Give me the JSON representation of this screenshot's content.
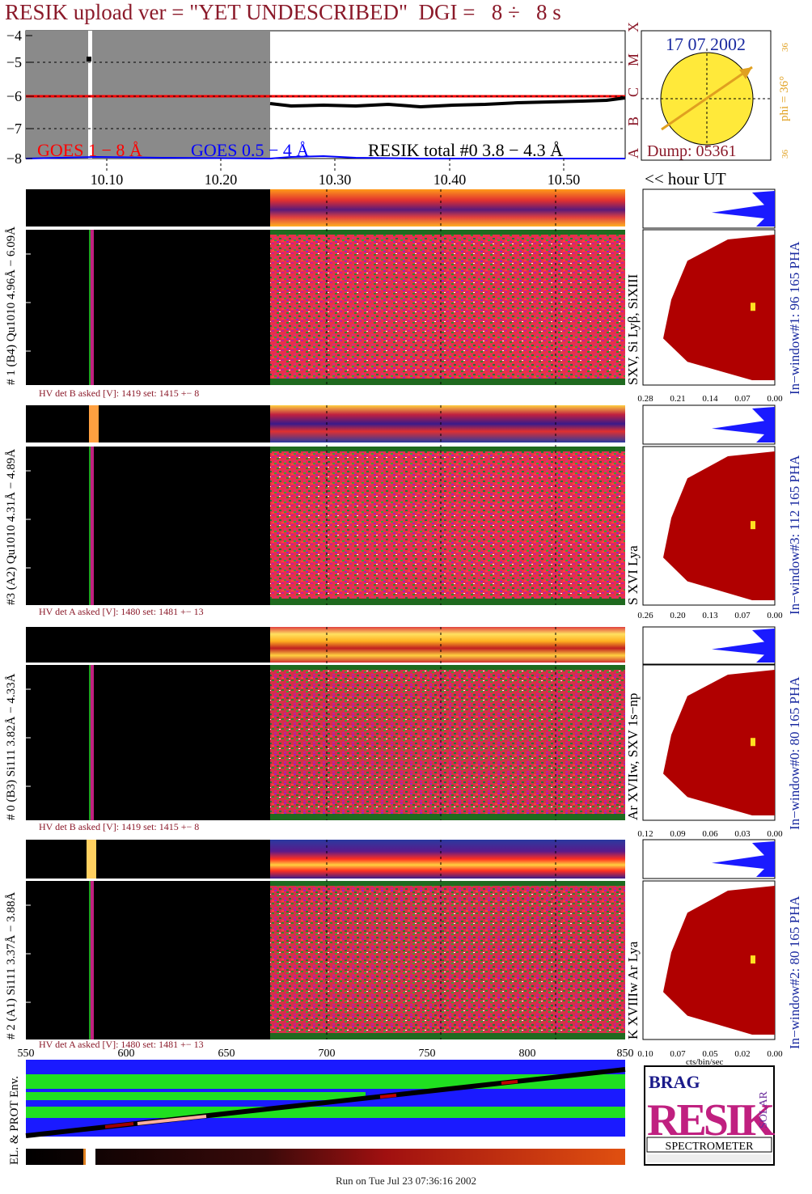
{
  "title": "RESIK upload ver = \"YET UNDESCRIBED\"  DGI =   8 ÷   8 s",
  "footer": "Run on Tue Jul 23 07:36:16 2002",
  "top_panel": {
    "y_ticks": [
      "−4",
      "−5",
      "−6",
      "−7",
      "−8"
    ],
    "class_labels": [
      "X",
      "M",
      "C",
      "B",
      "A"
    ],
    "x_ticks": [
      "10.10",
      "10.20",
      "10.30",
      "10.40",
      "10.50"
    ],
    "legend_goes_long": "GOES 1 − 8 Å",
    "legend_goes_short": "GOES 0.5 − 4 Å",
    "legend_resik": "RESIK total #0  3.8 − 4.3 Å",
    "colors": {
      "goes_long": "#ff0000",
      "goes_short": "#0000ff",
      "resik": "#000000",
      "eclipse": "#8a8a8a"
    }
  },
  "sun_panel": {
    "date": "17 07 2002",
    "dump": "Dump: 05361",
    "phi_label": "phi = 36°",
    "side_top": "36",
    "side_bottom": "36",
    "hour_label": "<< hour UT"
  },
  "channels": [
    {
      "label": "# 1 (B4) Qu1010 4.96Å − 6.09Å",
      "lines": "SXV, Si Lyβ, SiXIII",
      "window": "In−window#1:   96 165  PHA",
      "hv": "HV det B asked [V]:  1419 set:  1415  +−   8",
      "pha_ticks": [
        "0.28",
        "0.21",
        "0.14",
        "0.07",
        "0.00"
      ]
    },
    {
      "label": "#3 (A2) Qu1010  4.31Å − 4.89Å",
      "lines": "S XVI Lya",
      "window": "In−window#3:  112 165  PHA",
      "hv": "HV det A asked [V]:  1480 set:  1481  +−   13",
      "pha_ticks": [
        "0.26",
        "0.20",
        "0.13",
        "0.07",
        "0.00"
      ]
    },
    {
      "label": "# 0 (B3) Si111  3.82Å − 4.33Å",
      "lines": "Ar XVIIw, SXV 1s−np",
      "window": "In−window#0:   80 165  PHA",
      "hv": "HV det B asked [V]:  1419 set:  1415  +−   8",
      "pha_ticks": [
        "0.12",
        "0.09",
        "0.06",
        "0.03",
        "0.00"
      ]
    },
    {
      "label": "# 2 (A1) Si111  3.37Å − 3.88Å",
      "lines": "K XVIIIw  Ar Lya",
      "window": "In−window#2:   80 165  PHA",
      "hv": "HV det A asked [V]:  1480 set:  1481  +−   13",
      "pha_ticks": [
        "0.10",
        "0.07",
        "0.05",
        "0.02",
        "0.00"
      ]
    }
  ],
  "bottom": {
    "x_ticks": [
      "550",
      "600",
      "650",
      "700",
      "750",
      "800",
      "850"
    ],
    "cts_label": "cts/bin/sec",
    "env_label": "EL. & PROT Env."
  },
  "logo": {
    "letters": "RESIK",
    "small_left": "BRAG",
    "small_right": "SOLAR",
    "banner": "SPECTROMETER"
  }
}
